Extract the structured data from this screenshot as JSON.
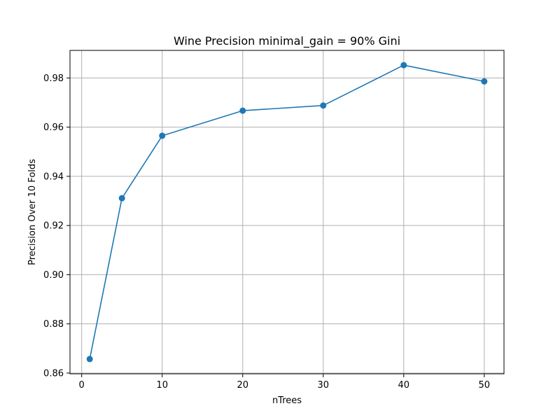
{
  "chart_data": {
    "type": "line",
    "title": "Wine Precision minimal_gain = 90% Gini",
    "xlabel": "nTrees",
    "ylabel": "Precision Over 10 Folds",
    "x": [
      1,
      5,
      10,
      20,
      30,
      40,
      50
    ],
    "series": [
      {
        "values": [
          0.8657,
          0.9311,
          0.9565,
          0.9667,
          0.9688,
          0.9852,
          0.9786
        ]
      }
    ],
    "xlim": [
      -1.45,
      52.45
    ],
    "ylim": [
      0.8597,
      0.9912
    ],
    "xticks": [
      0,
      10,
      20,
      30,
      40,
      50
    ],
    "xtick_labels": [
      "0",
      "10",
      "20",
      "30",
      "40",
      "50"
    ],
    "yticks": [
      0.86,
      0.88,
      0.9,
      0.92,
      0.94,
      0.96,
      0.98
    ],
    "ytick_labels": [
      "0.86",
      "0.88",
      "0.90",
      "0.92",
      "0.94",
      "0.96",
      "0.98"
    ],
    "grid": true,
    "colors": {
      "series": "#1f77b4",
      "grid": "#b0b0b0"
    }
  }
}
